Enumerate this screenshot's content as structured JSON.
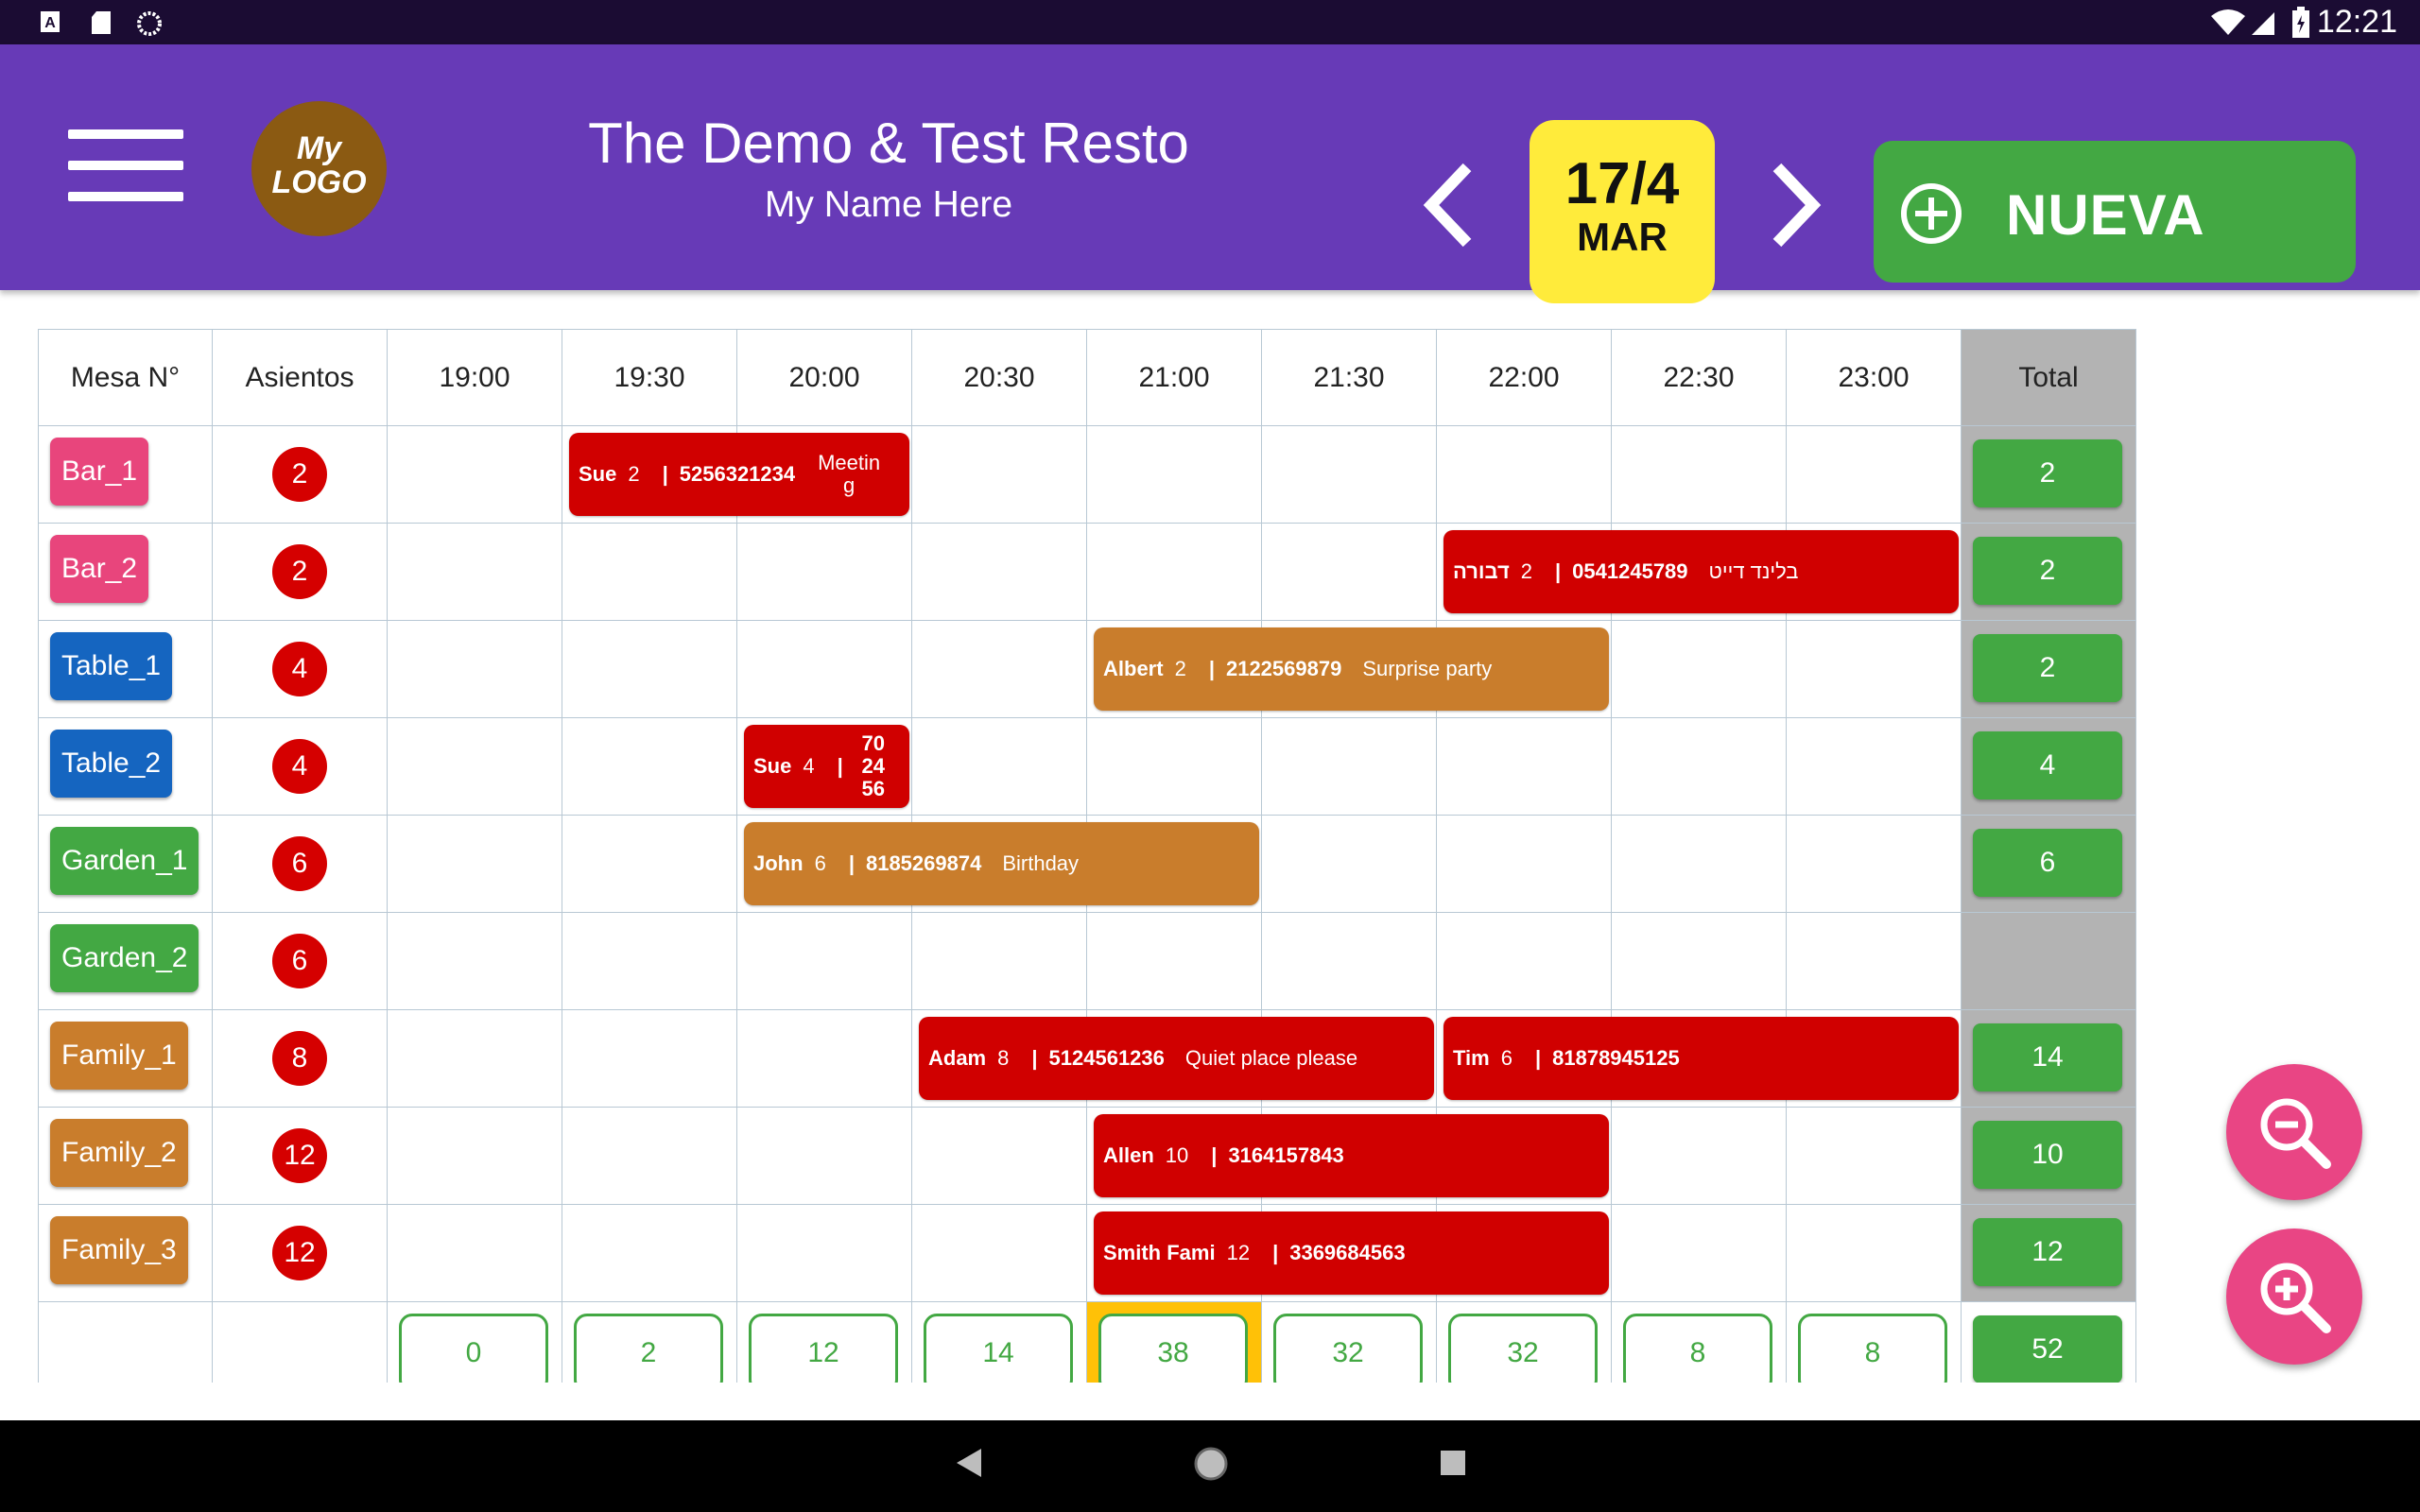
{
  "status_bar": {
    "time": "12:21",
    "left_icons": [
      "a-icon",
      "sd-card-icon",
      "sync-icon"
    ],
    "right_icons": [
      "wifi-icon",
      "signal-icon",
      "battery-icon"
    ]
  },
  "header": {
    "logo_line1": "My",
    "logo_line2": "LOGO",
    "title": "The Demo & Test Resto",
    "subtitle": "My Name Here",
    "date_day": "17/4",
    "date_weekday": "MAR",
    "new_button": "NUEVA",
    "background": "#673ab7",
    "date_color": "#ffeb3b",
    "new_color": "#43a843"
  },
  "columns": {
    "table": "Mesa N°",
    "seats": "Asientos",
    "times": [
      "19:00",
      "19:30",
      "20:00",
      "20:30",
      "21:00",
      "21:30",
      "22:00",
      "22:30",
      "23:00"
    ],
    "total": "Total"
  },
  "rows": [
    {
      "name": "Bar_1",
      "seats": "2",
      "color": "#e8457c",
      "total": "2"
    },
    {
      "name": "Bar_2",
      "seats": "2",
      "color": "#e8457c",
      "total": "2"
    },
    {
      "name": "Table_1",
      "seats": "4",
      "color": "#1565c0",
      "total": "2"
    },
    {
      "name": "Table_2",
      "seats": "4",
      "color": "#1565c0",
      "total": "4"
    },
    {
      "name": "Garden_1",
      "seats": "6",
      "color": "#43a843",
      "total": "6"
    },
    {
      "name": "Garden_2",
      "seats": "6",
      "color": "#43a843",
      "total": ""
    },
    {
      "name": "Family_1",
      "seats": "8",
      "color": "#c97d2c",
      "total": "14"
    },
    {
      "name": "Family_2",
      "seats": "12",
      "color": "#c97d2c",
      "total": "10"
    },
    {
      "name": "Family_3",
      "seats": "12",
      "color": "#c97d2c",
      "total": "12"
    }
  ],
  "reservations": [
    {
      "row": 0,
      "start": 1,
      "span": 2,
      "color": "red",
      "name": "Sue",
      "guests": "2",
      "phone": "5256321234",
      "note": "Meetin g"
    },
    {
      "row": 1,
      "start": 6,
      "span": 3,
      "color": "red",
      "name": "דבורה",
      "guests": "2",
      "phone": "0541245789",
      "note": "בלינד דייט"
    },
    {
      "row": 2,
      "start": 4,
      "span": 3,
      "color": "orange",
      "name": "Albert",
      "guests": "2",
      "phone": "2122569879",
      "note": "Surprise party"
    },
    {
      "row": 3,
      "start": 2,
      "span": 1,
      "color": "red",
      "name": "Sue",
      "guests": "4",
      "phone": "70 24 56",
      "note": ""
    },
    {
      "row": 4,
      "start": 2,
      "span": 3,
      "color": "orange",
      "name": "John",
      "guests": "6",
      "phone": "8185269874",
      "note": "Birthday"
    },
    {
      "row": 6,
      "start": 3,
      "span": 3,
      "color": "red",
      "name": "Adam",
      "guests": "8",
      "phone": "5124561236",
      "note": "Quiet place please"
    },
    {
      "row": 6,
      "start": 6,
      "span": 3,
      "color": "red",
      "name": "Tim",
      "guests": "6",
      "phone": "81878945125",
      "note": ""
    },
    {
      "row": 7,
      "start": 4,
      "span": 3,
      "color": "red",
      "name": "Allen",
      "guests": "10",
      "phone": "3164157843",
      "note": ""
    },
    {
      "row": 8,
      "start": 4,
      "span": 3,
      "color": "red",
      "name": "Smith Fami",
      "guests": "12",
      "phone": "3369684563",
      "note": ""
    }
  ],
  "time_totals": [
    "0",
    "2",
    "12",
    "14",
    "38",
    "32",
    "32",
    "8",
    "8"
  ],
  "highlight_time_index": 4,
  "grand_total": "52",
  "colors": {
    "reservation_red": "#d00000",
    "reservation_orange": "#c97d2c",
    "total_column": "#b3b3b3",
    "highlight": "#ffc107",
    "fab": "#e94584"
  }
}
